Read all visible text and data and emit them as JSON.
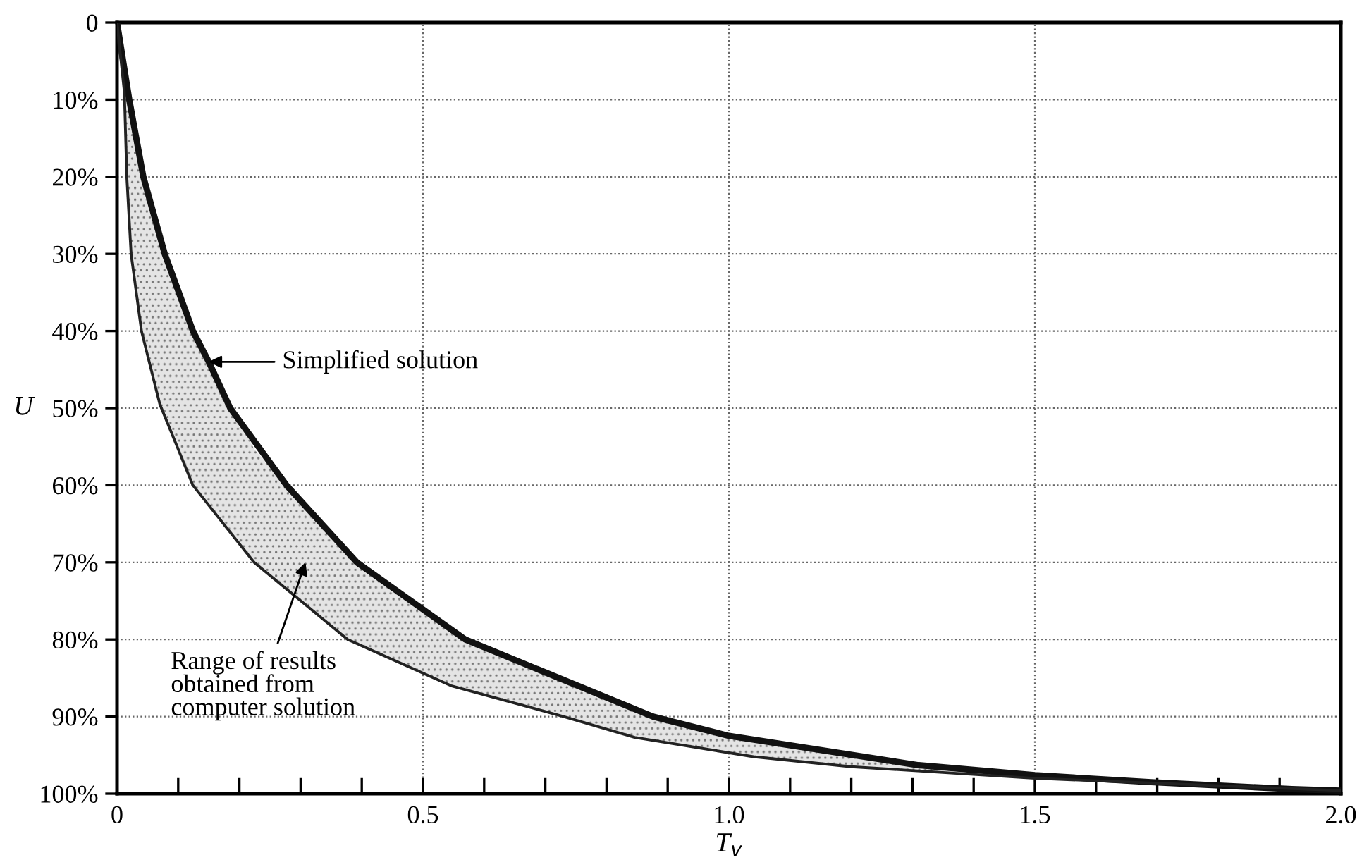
{
  "chart_data": {
    "type": "line",
    "xlabel": "T$_{v}$",
    "ylabel": "U",
    "xlim": [
      0,
      2.0
    ],
    "ylim": [
      100,
      0
    ],
    "xticks": [
      0,
      {
        "value": 0.1,
        "label": null
      },
      {
        "value": 0.2,
        "label": null
      },
      {
        "value": 0.3,
        "label": null
      },
      {
        "value": 0.4,
        "label": null
      },
      0.5,
      {
        "value": 0.6,
        "label": null
      },
      {
        "value": 0.7,
        "label": null
      },
      {
        "value": 0.8,
        "label": null
      },
      {
        "value": 0.9,
        "label": null
      },
      {
        "value": 1.0,
        "label": "1.0"
      },
      {
        "value": 1.1,
        "label": null
      },
      {
        "value": 1.2,
        "label": null
      },
      {
        "value": 1.3,
        "label": null
      },
      {
        "value": 1.4,
        "label": null
      },
      1.5,
      {
        "value": 1.6,
        "label": null
      },
      {
        "value": 1.7,
        "label": null
      },
      {
        "value": 1.8,
        "label": null
      },
      {
        "value": 1.9,
        "label": null
      },
      {
        "value": 2.0,
        "label": "2.0"
      }
    ],
    "yticks": [
      0,
      {
        "value": 10,
        "label": "10%"
      },
      {
        "value": 20,
        "label": "20%"
      },
      {
        "value": 30,
        "label": "30%"
      },
      {
        "value": 40,
        "label": "40%"
      },
      {
        "value": 50,
        "label": "50%"
      },
      {
        "value": 60,
        "label": "60%"
      },
      {
        "value": 70,
        "label": "70%"
      },
      {
        "value": 80,
        "label": "80%"
      },
      {
        "value": 90,
        "label": "90%"
      },
      {
        "value": 100,
        "label": "100%"
      }
    ],
    "grid": true,
    "marker": "none",
    "line_style": "solid",
    "series": [
      {
        "color": "#111111",
        "x": [
          0,
          0.02,
          0.043,
          0.078,
          0.124,
          0.15,
          0.185,
          0.277,
          0.392,
          0.569,
          0.876,
          1.0,
          1.31,
          1.5,
          1.69,
          1.92,
          2.0
        ],
        "values": [
          0,
          10,
          20,
          30,
          40,
          44,
          50,
          60,
          70,
          80,
          90,
          92.5,
          96.3,
          97.6,
          98.5,
          99.4,
          99.6
        ]
      },
      {
        "color": "#222222",
        "x": [
          0,
          0.012,
          0.016,
          0.023,
          0.04,
          0.07,
          0.124,
          0.224,
          0.377,
          0.546,
          0.73,
          0.846,
          1.04,
          1.2,
          1.5,
          2.0
        ],
        "values": [
          0,
          9,
          20,
          30,
          40,
          49.5,
          60,
          70,
          80,
          86,
          90,
          92.7,
          95.2,
          96.5,
          98,
          99.6
        ],
        "lower": [
          0,
          6,
          8,
          11.3,
          18.7,
          27.7,
          40,
          55.3,
          68.7,
          78.7,
          85.3,
          89,
          93.3,
          95,
          97.6,
          99.6
        ],
        "upper": [
          0,
          9,
          20,
          30,
          40,
          49.5,
          60,
          70,
          80,
          86,
          90,
          92.7,
          95.2,
          96.5,
          98,
          99.6
        ]
      }
    ],
    "annotations": [
      {
        "text": "Simplified solution",
        "x": 0.15,
        "y": 44
      },
      "Range of results\nobtained from\ncomputer solution"
    ]
  }
}
